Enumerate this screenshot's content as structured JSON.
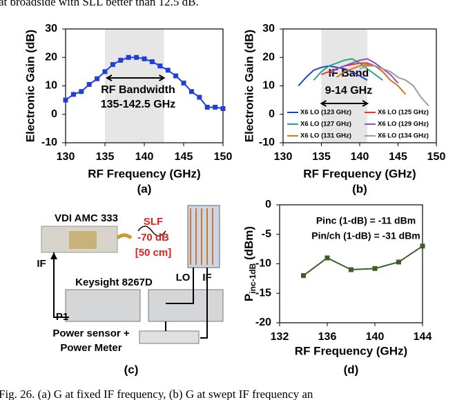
{
  "text_top": "at broadside with SLL better than 12.5 dB.",
  "chart_data": [
    {
      "type": "line",
      "panel": "(a)",
      "xlabel": "RF Frequency (GHz)",
      "ylabel": "Electronic Gain (dB)",
      "xlim": [
        130,
        150
      ],
      "xticks": [
        130,
        135,
        140,
        145,
        150
      ],
      "ylim": [
        -10,
        30
      ],
      "yticks": [
        -10,
        0,
        10,
        20,
        30
      ],
      "shade": [
        135,
        142.5
      ],
      "marker": "square",
      "annotations": [
        "RF Bandwidth",
        "135-142.5 GHz"
      ],
      "series": [
        {
          "color": "#1f3fd8",
          "x": [
            130,
            131,
            132,
            133,
            134,
            135,
            136,
            137,
            138,
            139,
            140,
            141,
            142,
            143,
            144,
            145,
            146,
            147,
            148,
            149,
            150
          ],
          "values": [
            5,
            7,
            8,
            10.5,
            12.5,
            15,
            17.5,
            19,
            20,
            20,
            19.5,
            18.5,
            17,
            15.5,
            13.5,
            11,
            8,
            6,
            2.5,
            2.5,
            2
          ]
        }
      ]
    },
    {
      "type": "line",
      "panel": "(b)",
      "xlabel": "RF Frequency (GHz)",
      "ylabel": "Electronic Gain (dB)",
      "xlim": [
        130,
        150
      ],
      "xticks": [
        130,
        135,
        140,
        145,
        150
      ],
      "ylim": [
        -10,
        30
      ],
      "yticks": [
        -10,
        0,
        10,
        20,
        30
      ],
      "shade": [
        135,
        141
      ],
      "annotations": [
        "IF Band",
        "9-14 GHz"
      ],
      "series": [
        {
          "name": "X6 LO (123 GHz)",
          "color": "#1f3fd8",
          "x": [
            132,
            133,
            134,
            135,
            136,
            137,
            138,
            139,
            140,
            141
          ],
          "values": [
            10,
            13,
            15.5,
            16.5,
            17,
            16.5,
            16,
            15,
            13.5,
            12
          ]
        },
        {
          "name": "X6 LO (125 GHz)",
          "color": "#e8322a",
          "x": [
            135,
            136,
            137,
            138,
            139,
            140,
            141,
            142,
            143,
            144
          ],
          "values": [
            14,
            15,
            16,
            17,
            17.5,
            18,
            18,
            17,
            15,
            12
          ]
        },
        {
          "name": "X6 LO (127 GHz)",
          "color": "#1fa878",
          "x": [
            134,
            135,
            136,
            137,
            138,
            139,
            140,
            141,
            142,
            143
          ],
          "values": [
            12,
            15,
            17,
            18,
            19,
            19.5,
            18,
            16,
            14,
            12
          ]
        },
        {
          "name": "X6 LO (129 GHz)",
          "color": "#8a4fc4",
          "x": [
            136,
            137,
            138,
            139,
            140,
            141,
            142,
            143,
            144,
            145
          ],
          "values": [
            14,
            16,
            17,
            18,
            19,
            19.5,
            18,
            16,
            14,
            11
          ]
        },
        {
          "name": "X6 LO (131 GHz)",
          "color": "#d9731f",
          "x": [
            137,
            138,
            139,
            140,
            141,
            142,
            143,
            144,
            145,
            146
          ],
          "values": [
            13,
            15,
            16,
            17,
            17.5,
            17,
            15,
            12,
            10,
            7
          ]
        },
        {
          "name": "X6 LO (134 GHz)",
          "color": "#9a9a9a",
          "x": [
            140,
            141,
            142,
            143,
            144,
            145,
            146,
            147,
            148,
            149
          ],
          "values": [
            16,
            17,
            17,
            16,
            15,
            13,
            12,
            10,
            6,
            3
          ]
        }
      ]
    },
    {
      "type": "line",
      "panel": "(d)",
      "xlabel": "RF Frequency (GHz)",
      "ylabel_main": "P",
      "ylabel_sub": "inc-1dB",
      "ylabel_unit": " (dBm)",
      "xlim": [
        132,
        144
      ],
      "xticks": [
        132,
        136,
        140,
        144
      ],
      "ylim": [
        -20,
        0
      ],
      "yticks": [
        -20,
        -15,
        -10,
        -5,
        0
      ],
      "marker": "square",
      "annotations": [
        "Pinc (1-dB) = -11 dBm",
        "Pin/ch (1-dB) = -31 dBm"
      ],
      "series": [
        {
          "color": "#3b5e2b",
          "x": [
            134,
            136,
            138,
            140,
            142,
            144
          ],
          "values": [
            -12,
            -9,
            -11,
            -10.8,
            -9.7,
            -7
          ]
        }
      ]
    }
  ],
  "diagram": {
    "panel": "(c)",
    "labels": [
      "VDI AMC 333",
      "SLF",
      "-70 dB",
      "[50 cm]",
      "IF",
      "Keysight 8267D",
      "LO",
      "IF",
      "P1",
      "Power sensor +",
      "Power Meter"
    ]
  },
  "caption": "Fig. 26.    (a) G     at fixed IF frequency, (b) G     at swept IF frequency an"
}
